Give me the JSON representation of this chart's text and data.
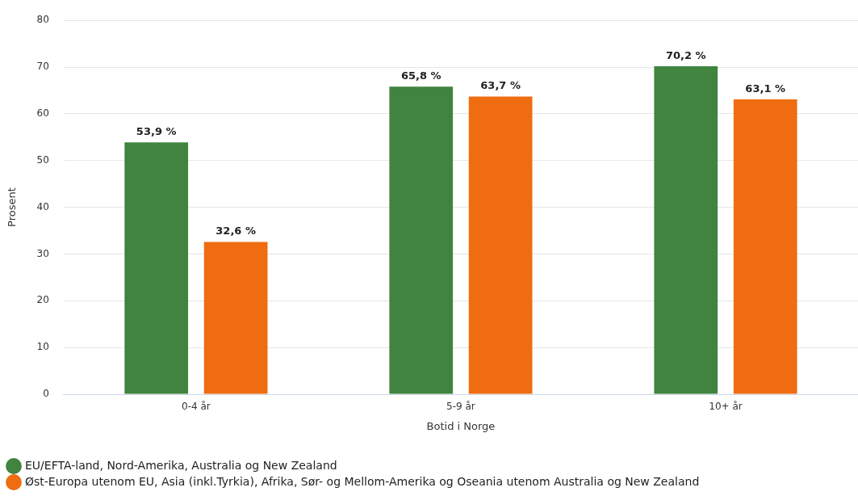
{
  "chart_data": {
    "type": "bar",
    "xlabel": "Botid i Norge",
    "ylabel": "Prosent",
    "categories": [
      "0-4 år",
      "5-9 år",
      "10+ år"
    ],
    "series": [
      {
        "name": "EU/EFTA-land, Nord-Amerika, Australia og New Zealand",
        "color": "#41843f",
        "values": [
          53.9,
          65.8,
          70.2
        ],
        "value_labels": [
          "53,9 %",
          "65,8 %",
          "70,2 %"
        ]
      },
      {
        "name": "Øst-Europa utenom EU, Asia (inkl.Tyrkia), Afrika, Sør- og Mellom-Amerika og Oseania utenom Australia og New Zealand",
        "color": "#ef6c11",
        "values": [
          32.6,
          63.7,
          63.1
        ],
        "value_labels": [
          "32,6 %",
          "63,7 %",
          "63,1 %"
        ]
      }
    ],
    "ylim": [
      0,
      80
    ],
    "yticks": [
      0,
      10,
      20,
      30,
      40,
      50,
      60,
      70,
      80
    ],
    "grid": "y",
    "legend": "bottom",
    "marker": "circle"
  }
}
